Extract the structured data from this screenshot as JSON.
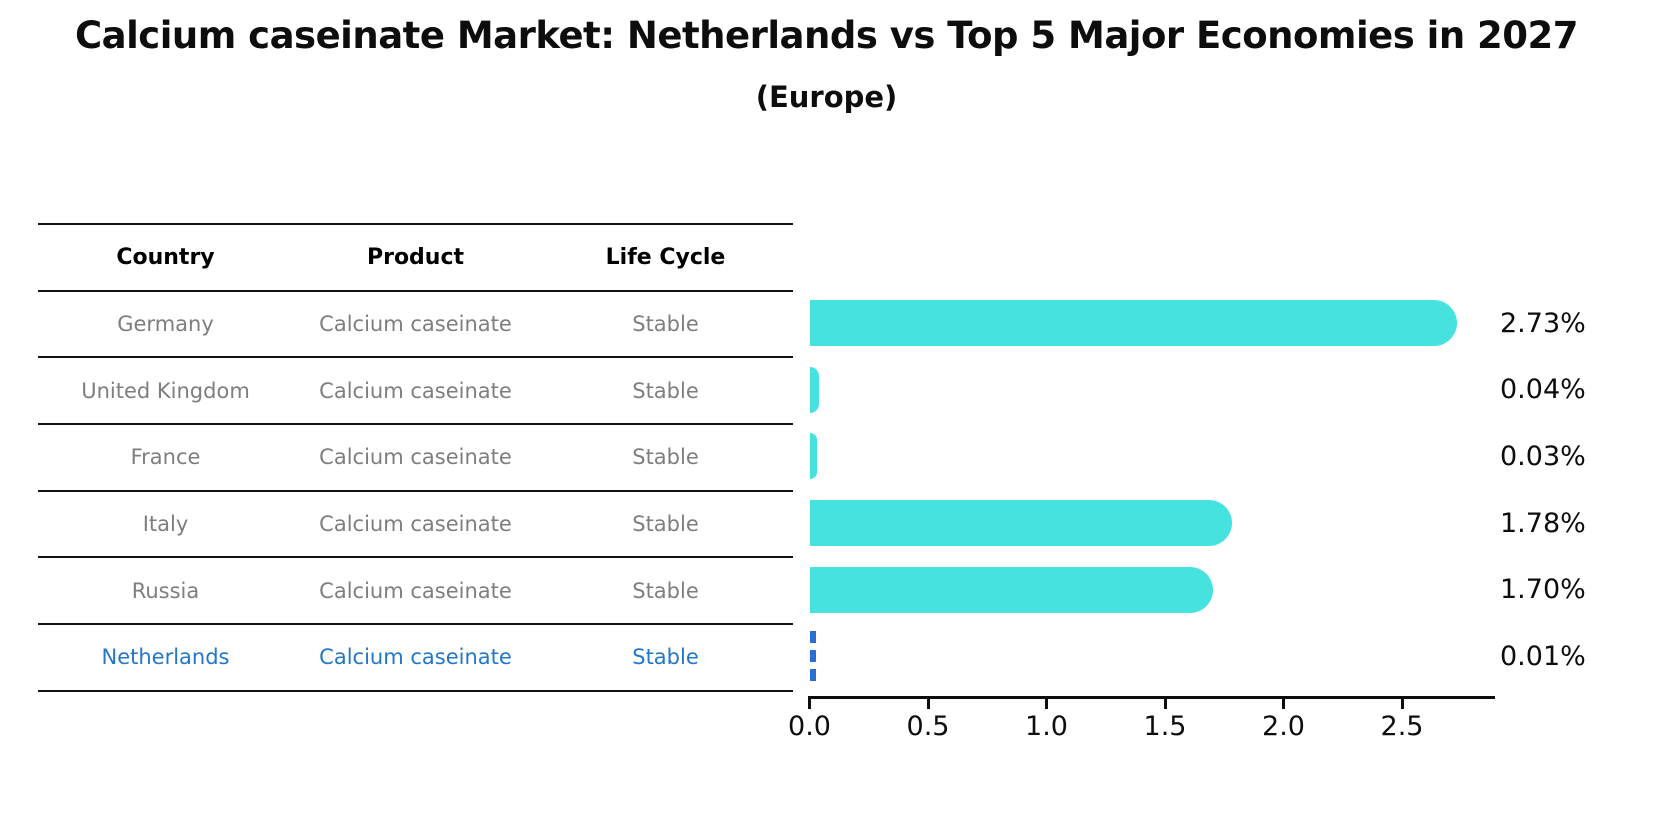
{
  "title": "Calcium caseinate Market: Netherlands vs Top 5 Major Economies in 2027",
  "subtitle": "(Europe)",
  "table": {
    "headers": {
      "country": "Country",
      "product": "Product",
      "life_cycle": "Life Cycle"
    },
    "rows": [
      {
        "country": "Germany",
        "product": "Calcium caseinate",
        "life_cycle": "Stable",
        "value": 2.73,
        "value_label": "2.73%",
        "highlight": false
      },
      {
        "country": "United Kingdom",
        "product": "Calcium caseinate",
        "life_cycle": "Stable",
        "value": 0.04,
        "value_label": "0.04%",
        "highlight": false
      },
      {
        "country": "France",
        "product": "Calcium caseinate",
        "life_cycle": "Stable",
        "value": 0.03,
        "value_label": "0.03%",
        "highlight": false
      },
      {
        "country": "Italy",
        "product": "Calcium caseinate",
        "life_cycle": "Stable",
        "value": 1.78,
        "value_label": "1.78%",
        "highlight": false
      },
      {
        "country": "Russia",
        "product": "Calcium caseinate",
        "life_cycle": "Stable",
        "value": 1.7,
        "value_label": "1.70%",
        "highlight": false
      },
      {
        "country": "Netherlands",
        "product": "Calcium caseinate",
        "life_cycle": "Stable",
        "value": 0.01,
        "value_label": "0.01%",
        "highlight": true
      }
    ]
  },
  "axis": {
    "ticks": [
      "0.0",
      "0.5",
      "1.0",
      "1.5",
      "2.0",
      "2.5"
    ]
  },
  "colors": {
    "bar": "#45e2df",
    "highlight_bar": "#2b6fd4",
    "highlight_text": "#2277cb",
    "row_text": "#7e7e7e",
    "header_text": "#000000",
    "axis": "#0d0d0d"
  },
  "chart_data": {
    "type": "bar",
    "orientation": "horizontal",
    "title": "Calcium caseinate Market: Netherlands vs Top 5 Major Economies in 2027",
    "subtitle": "(Europe)",
    "categories": [
      "Germany",
      "United Kingdom",
      "France",
      "Italy",
      "Russia",
      "Netherlands"
    ],
    "values": [
      2.73,
      0.04,
      0.03,
      1.78,
      1.7,
      0.01
    ],
    "value_labels": [
      "2.73%",
      "0.04%",
      "0.03%",
      "1.78%",
      "1.70%",
      "0.01%"
    ],
    "xlabel": "",
    "ylabel": "",
    "xlim": [
      0,
      2.9
    ],
    "xticks": [
      0,
      0.5,
      1.0,
      1.5,
      2.0,
      2.5
    ],
    "grid": false,
    "legend": false,
    "highlight_category": "Netherlands",
    "annotation_columns": [
      "Country",
      "Product",
      "Life Cycle"
    ]
  }
}
